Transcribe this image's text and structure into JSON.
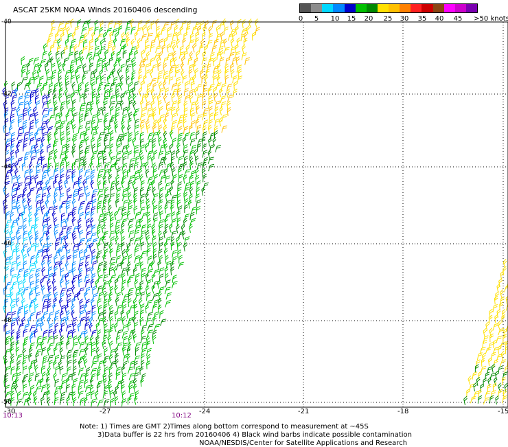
{
  "title": "ASCAT 25KM NOAA Winds 20160406 descending",
  "colorbar": {
    "colors": [
      "#555555",
      "#8c8c8c",
      "#00d8ff",
      "#0088ff",
      "#0000cc",
      "#00c000",
      "#008800",
      "#ffe000",
      "#ffc000",
      "#ff8000",
      "#ff2020",
      "#cc0000",
      "#8b4513",
      "#ff00ff",
      "#cc00cc",
      "#7a00b0"
    ],
    "labels": [
      "0",
      "5",
      "10",
      "15",
      "20",
      "25",
      "30",
      "35",
      "40",
      "45",
      ">50 knots"
    ]
  },
  "axes": {
    "x_ticks": [
      "-27",
      "-24",
      "-21",
      "-18",
      "-15"
    ],
    "x_edge_label": "-30",
    "y_ticks": [
      "-40",
      "-42",
      "-44",
      "-46",
      "-48",
      "-50"
    ]
  },
  "times": [
    "10:13",
    "10:12"
  ],
  "notes": [
    "Note: 1) Times are GMT 2)Times along bottom correspond to measurement at ~45S",
    "3)Data buffer is 22 hrs from 20160406 4) Black wind barbs indicate possible contamination",
    "NOAA/NESDIS/Center for Satellite Applications and Research"
  ],
  "barb_colors": {
    "dark_blue": "#0000cc",
    "blue": "#0088ff",
    "cyan": "#00d8ff",
    "green": "#00c000",
    "dark_green": "#008800",
    "yellow": "#ffe000",
    "orange_yellow": "#ffc000"
  },
  "icons": [
    "wind-barb-icon"
  ]
}
